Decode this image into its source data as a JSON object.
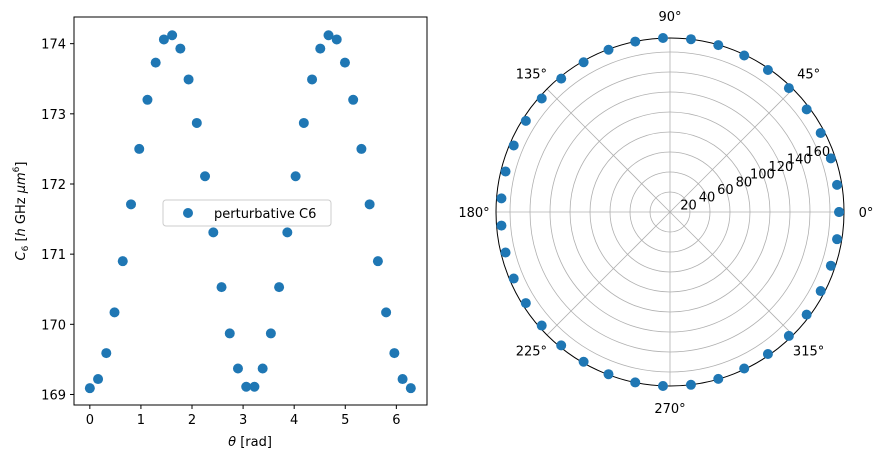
{
  "chart_data": [
    {
      "type": "scatter",
      "title": "",
      "xlabel": "θ [rad]",
      "ylabel": "C6 [h GHz μm6]",
      "xlim": [
        -0.31,
        6.6
      ],
      "ylim": [
        168.85,
        174.38
      ],
      "xticks": [
        0,
        1,
        2,
        3,
        4,
        5,
        6
      ],
      "yticks": [
        169,
        170,
        171,
        172,
        173,
        174
      ],
      "grid": false,
      "legend": "center",
      "color": "#1f77b4",
      "series": [
        {
          "name": "perturbative C6",
          "x": [
            0.0,
            0.161,
            0.322,
            0.483,
            0.644,
            0.806,
            0.967,
            1.128,
            1.289,
            1.45,
            1.611,
            1.772,
            1.933,
            2.094,
            2.255,
            2.417,
            2.578,
            2.739,
            2.9,
            3.061,
            3.222,
            3.383,
            3.544,
            3.705,
            3.866,
            4.028,
            4.189,
            4.35,
            4.511,
            4.672,
            4.833,
            4.994,
            5.155,
            5.316,
            5.477,
            5.639,
            5.8,
            5.961,
            6.122,
            6.283
          ],
          "y": [
            169.09,
            169.22,
            169.59,
            170.17,
            170.9,
            171.71,
            172.5,
            173.2,
            173.73,
            174.06,
            174.12,
            173.93,
            173.49,
            172.87,
            172.11,
            171.31,
            170.53,
            169.87,
            169.37,
            169.11,
            169.11,
            169.37,
            169.87,
            170.53,
            171.31,
            172.11,
            172.87,
            173.49,
            173.93,
            174.12,
            174.06,
            173.73,
            173.2,
            172.5,
            171.71,
            170.9,
            170.17,
            169.59,
            169.22,
            169.09
          ]
        }
      ]
    },
    {
      "type": "scatter",
      "projection": "polar",
      "rmax": 174,
      "rticks": [
        20,
        40,
        60,
        80,
        100,
        120,
        140,
        160
      ],
      "angle_ticks": [
        "0°",
        "45°",
        "90°",
        "135°",
        "180°",
        "225°",
        "270°",
        "315°"
      ],
      "grid": true,
      "color": "#1f77b4",
      "series": [
        {
          "theta_source": "same as left panel",
          "r_source": "same as left panel"
        }
      ]
    }
  ],
  "left": {
    "ylabel_main": "C",
    "ylabel_sub": "6",
    "ylabel_rest": " [",
    "ylabel_h": "h",
    "ylabel_ghz": " GHz ",
    "ylabel_um": "μm",
    "ylabel_exp": "6",
    "ylabel_close": "]",
    "xlabel_theta": "θ",
    "xlabel_unit": " [rad]",
    "legend_label": "perturbative C6"
  }
}
